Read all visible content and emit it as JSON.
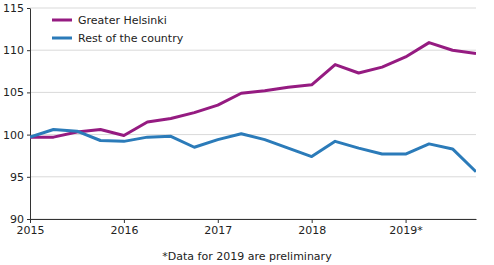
{
  "chart_data": {
    "type": "line",
    "x": [
      2015,
      2015.25,
      2015.5,
      2015.75,
      2016,
      2016.25,
      2016.5,
      2016.75,
      2017,
      2017.25,
      2017.5,
      2017.75,
      2018,
      2018.25,
      2018.5,
      2018.75,
      2019,
      2019.25,
      2019.5,
      2019.75
    ],
    "series": [
      {
        "name": "Greater Helsinki",
        "color": "#951b81",
        "values": [
          99.7,
          99.7,
          100.3,
          100.6,
          99.9,
          101.5,
          101.9,
          102.6,
          103.5,
          104.9,
          105.2,
          105.6,
          105.9,
          108.3,
          107.3,
          108.0,
          109.2,
          110.9,
          110.0,
          109.6
        ]
      },
      {
        "name": "Rest of the country",
        "color": "#2b7bb9",
        "values": [
          99.7,
          100.6,
          100.4,
          99.3,
          99.2,
          99.7,
          99.8,
          98.5,
          99.4,
          100.1,
          99.4,
          98.4,
          97.4,
          99.2,
          98.4,
          97.7,
          97.7,
          98.9,
          98.3,
          95.6
        ]
      }
    ],
    "xlim": [
      2015,
      2019.75
    ],
    "xticks": [
      2015,
      2016,
      2017,
      2018,
      {
        "value": 2019,
        "label": "2019*"
      }
    ],
    "ylim": [
      90,
      115
    ],
    "yticks": [
      90,
      95,
      100,
      105,
      110,
      115
    ],
    "grid": true,
    "legend": "upper left",
    "annotations": [
      "*Data for 2019 are preliminary"
    ]
  }
}
